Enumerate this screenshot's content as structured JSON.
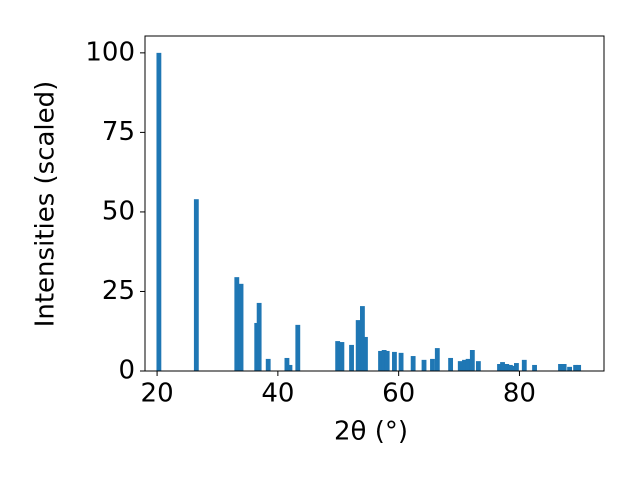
{
  "chart_data": {
    "type": "bar",
    "xlabel": "2θ (°)",
    "ylabel": "Intensities (scaled)",
    "color": "#1f77b4",
    "x": [
      20.3,
      26.5,
      33.2,
      33.9,
      36.5,
      36.9,
      38.4,
      41.5,
      42.0,
      43.3,
      49.9,
      50.6,
      52.2,
      53.3,
      54.0,
      54.5,
      57.0,
      57.6,
      58.1,
      59.3,
      60.4,
      62.4,
      64.2,
      65.6,
      66.4,
      68.6,
      70.2,
      70.9,
      71.5,
      72.2,
      73.2,
      76.7,
      77.2,
      77.9,
      78.5,
      78.8,
      79.5,
      80.8,
      82.5,
      86.8,
      87.4,
      88.3,
      89.3,
      89.8
    ],
    "values": [
      100,
      54,
      29.5,
      27.4,
      15.1,
      21.4,
      3.8,
      4.1,
      1.9,
      14.5,
      9.4,
      9.1,
      8.2,
      16,
      20.4,
      10.7,
      6.3,
      6.6,
      6.3,
      6.0,
      5.7,
      4.7,
      3.5,
      3.8,
      7.2,
      4.1,
      3.1,
      3.5,
      3.8,
      6.6,
      3.1,
      2.2,
      2.8,
      2.2,
      1.9,
      1.6,
      2.5,
      3.5,
      1.9,
      2.2,
      2.2,
      1.3,
      1.9,
      1.9
    ],
    "xlim": [
      18.0,
      94.0
    ],
    "xticks": [
      20,
      40,
      60,
      80
    ],
    "ylim": [
      0,
      105.3
    ],
    "yticks": [
      0,
      25,
      50,
      75,
      100
    ]
  }
}
